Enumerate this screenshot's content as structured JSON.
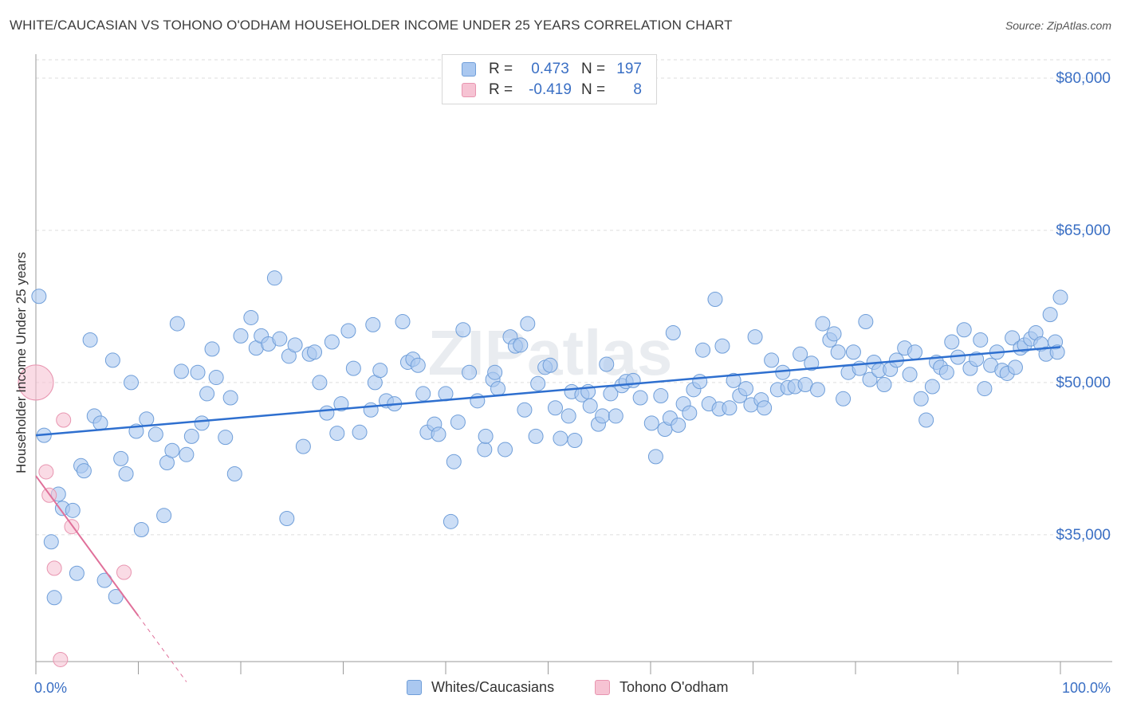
{
  "title": "WHITE/CAUCASIAN VS TOHONO O'ODHAM HOUSEHOLDER INCOME UNDER 25 YEARS CORRELATION CHART",
  "source": "Source: ZipAtlas.com",
  "watermark": "ZIPatlas",
  "legend": {
    "rows": [
      {
        "r_label": "R =",
        "r_value": "0.473",
        "n_label": "N =",
        "n_value": "197"
      },
      {
        "r_label": "R =",
        "r_value": "-0.419",
        "n_label": "N =",
        "n_value": "8"
      }
    ]
  },
  "bottom_legend": [
    "Whites/Caucasians",
    "Tohono O'odham"
  ],
  "colors": {
    "blue_fill": "#aac8f0",
    "blue_stroke": "#6f9ed9",
    "blue_line": "#2e6fcf",
    "pink_fill": "#f6c3d3",
    "pink_stroke": "#e895b0",
    "pink_line": "#e0709a",
    "tick_text": "#3a6fc4",
    "grid": "#dddddd"
  },
  "chart_data": {
    "type": "scatter",
    "title": "WHITE/CAUCASIAN VS TOHONO O'ODHAM HOUSEHOLDER INCOME UNDER 25 YEARS CORRELATION CHART",
    "xlabel": "",
    "ylabel": "Householder Income Under 25 years",
    "xlim": [
      0,
      100
    ],
    "ylim": [
      20000,
      82500
    ],
    "x_tick_labels": [
      "0.0%",
      "100.0%"
    ],
    "y_ticks": [
      35000,
      50000,
      65000,
      80000
    ],
    "y_tick_labels": [
      "$35,000",
      "$50,000",
      "$65,000",
      "$80,000"
    ],
    "grid": "horizontal dashed",
    "legend_position": "top-center",
    "series": [
      {
        "name": "Whites/Caucasians",
        "R": 0.473,
        "N": 197,
        "trend": {
          "x": [
            0,
            100
          ],
          "y": [
            44800,
            53500
          ]
        },
        "points": [
          [
            0.3,
            58500
          ],
          [
            0.8,
            44800
          ],
          [
            1.5,
            34300
          ],
          [
            1.8,
            28800
          ],
          [
            2.2,
            39000
          ],
          [
            2.6,
            37600
          ],
          [
            3.6,
            37400
          ],
          [
            4.0,
            31200
          ],
          [
            4.4,
            41800
          ],
          [
            4.7,
            41300
          ],
          [
            5.3,
            54200
          ],
          [
            5.7,
            46700
          ],
          [
            6.3,
            46000
          ],
          [
            6.7,
            30500
          ],
          [
            7.5,
            52200
          ],
          [
            7.8,
            28900
          ],
          [
            8.3,
            42500
          ],
          [
            8.8,
            41000
          ],
          [
            9.3,
            50000
          ],
          [
            9.8,
            45200
          ],
          [
            10.3,
            35500
          ],
          [
            10.8,
            46400
          ],
          [
            11.7,
            44900
          ],
          [
            12.5,
            36900
          ],
          [
            12.8,
            42100
          ],
          [
            13.3,
            43300
          ],
          [
            13.8,
            55800
          ],
          [
            14.2,
            51100
          ],
          [
            14.7,
            42900
          ],
          [
            15.2,
            44700
          ],
          [
            15.8,
            51000
          ],
          [
            16.2,
            46000
          ],
          [
            16.7,
            48900
          ],
          [
            17.2,
            53300
          ],
          [
            17.6,
            50500
          ],
          [
            18.5,
            44600
          ],
          [
            19.0,
            48500
          ],
          [
            19.4,
            41000
          ],
          [
            20.0,
            54600
          ],
          [
            21.0,
            56400
          ],
          [
            21.5,
            53400
          ],
          [
            22.0,
            54600
          ],
          [
            22.7,
            53800
          ],
          [
            23.3,
            60300
          ],
          [
            23.8,
            54300
          ],
          [
            24.5,
            36600
          ],
          [
            24.7,
            52600
          ],
          [
            25.3,
            53700
          ],
          [
            26.1,
            43700
          ],
          [
            26.7,
            52800
          ],
          [
            27.2,
            53000
          ],
          [
            27.7,
            50000
          ],
          [
            28.4,
            47000
          ],
          [
            28.9,
            54000
          ],
          [
            29.4,
            45000
          ],
          [
            29.8,
            47900
          ],
          [
            30.5,
            55100
          ],
          [
            31.0,
            51400
          ],
          [
            31.6,
            45100
          ],
          [
            32.7,
            47300
          ],
          [
            32.9,
            55700
          ],
          [
            33.1,
            50000
          ],
          [
            33.6,
            51200
          ],
          [
            34.2,
            48200
          ],
          [
            35.0,
            47900
          ],
          [
            35.8,
            56000
          ],
          [
            36.3,
            52000
          ],
          [
            36.8,
            52300
          ],
          [
            37.3,
            51700
          ],
          [
            37.8,
            48900
          ],
          [
            38.2,
            45100
          ],
          [
            38.9,
            45900
          ],
          [
            39.3,
            44900
          ],
          [
            40.0,
            48900
          ],
          [
            40.5,
            36300
          ],
          [
            40.8,
            42200
          ],
          [
            41.2,
            46100
          ],
          [
            41.7,
            55200
          ],
          [
            42.3,
            51000
          ],
          [
            43.1,
            48200
          ],
          [
            43.8,
            43400
          ],
          [
            43.9,
            44700
          ],
          [
            44.6,
            50300
          ],
          [
            44.8,
            51000
          ],
          [
            45.1,
            49400
          ],
          [
            45.8,
            43400
          ],
          [
            46.3,
            54500
          ],
          [
            46.8,
            53600
          ],
          [
            47.3,
            53700
          ],
          [
            47.7,
            47300
          ],
          [
            48.0,
            55800
          ],
          [
            48.8,
            44700
          ],
          [
            49.0,
            49900
          ],
          [
            49.7,
            51500
          ],
          [
            50.2,
            51700
          ],
          [
            50.7,
            47500
          ],
          [
            51.2,
            44500
          ],
          [
            52.0,
            46700
          ],
          [
            52.3,
            49100
          ],
          [
            52.6,
            44300
          ],
          [
            53.3,
            48800
          ],
          [
            53.9,
            49100
          ],
          [
            54.1,
            47700
          ],
          [
            54.9,
            45900
          ],
          [
            55.3,
            46700
          ],
          [
            55.7,
            51800
          ],
          [
            56.1,
            48900
          ],
          [
            56.6,
            46700
          ],
          [
            57.2,
            49700
          ],
          [
            57.6,
            50100
          ],
          [
            58.3,
            50200
          ],
          [
            59.0,
            48500
          ],
          [
            60.1,
            46000
          ],
          [
            60.5,
            42700
          ],
          [
            61.0,
            48700
          ],
          [
            61.4,
            45400
          ],
          [
            61.9,
            46500
          ],
          [
            62.2,
            54900
          ],
          [
            62.7,
            45800
          ],
          [
            63.2,
            47900
          ],
          [
            63.8,
            47000
          ],
          [
            64.2,
            49300
          ],
          [
            64.8,
            50100
          ],
          [
            65.1,
            53200
          ],
          [
            65.7,
            47900
          ],
          [
            66.3,
            58200
          ],
          [
            66.7,
            47400
          ],
          [
            67.0,
            53600
          ],
          [
            67.7,
            47500
          ],
          [
            68.1,
            50200
          ],
          [
            68.7,
            48700
          ],
          [
            69.3,
            49400
          ],
          [
            69.8,
            47800
          ],
          [
            70.2,
            54500
          ],
          [
            70.8,
            48300
          ],
          [
            71.1,
            47500
          ],
          [
            71.8,
            52200
          ],
          [
            72.4,
            49300
          ],
          [
            72.9,
            51000
          ],
          [
            73.4,
            49500
          ],
          [
            74.1,
            49600
          ],
          [
            74.6,
            52800
          ],
          [
            75.1,
            49800
          ],
          [
            75.7,
            51900
          ],
          [
            76.3,
            49300
          ],
          [
            76.8,
            55800
          ],
          [
            77.5,
            54200
          ],
          [
            77.9,
            54800
          ],
          [
            78.3,
            53000
          ],
          [
            78.8,
            48400
          ],
          [
            79.3,
            51000
          ],
          [
            79.8,
            53000
          ],
          [
            80.4,
            51400
          ],
          [
            81.0,
            56000
          ],
          [
            81.4,
            50300
          ],
          [
            81.8,
            52000
          ],
          [
            82.3,
            51200
          ],
          [
            82.8,
            49800
          ],
          [
            83.4,
            51300
          ],
          [
            84.0,
            52200
          ],
          [
            84.8,
            53400
          ],
          [
            85.3,
            50800
          ],
          [
            85.8,
            53000
          ],
          [
            86.4,
            48400
          ],
          [
            86.9,
            46300
          ],
          [
            87.5,
            49600
          ],
          [
            87.9,
            52000
          ],
          [
            88.3,
            51500
          ],
          [
            88.9,
            51000
          ],
          [
            89.4,
            54000
          ],
          [
            90.0,
            52500
          ],
          [
            90.6,
            55200
          ],
          [
            91.2,
            51400
          ],
          [
            91.8,
            52300
          ],
          [
            92.2,
            54200
          ],
          [
            92.6,
            49400
          ],
          [
            93.2,
            51700
          ],
          [
            93.8,
            53000
          ],
          [
            94.3,
            51200
          ],
          [
            94.8,
            50900
          ],
          [
            95.3,
            54400
          ],
          [
            95.6,
            51500
          ],
          [
            96.1,
            53400
          ],
          [
            96.5,
            53700
          ],
          [
            97.1,
            54300
          ],
          [
            97.6,
            54900
          ],
          [
            98.1,
            53800
          ],
          [
            98.6,
            52800
          ],
          [
            99.0,
            56700
          ],
          [
            99.5,
            54000
          ],
          [
            99.7,
            53000
          ],
          [
            100.0,
            58400
          ]
        ]
      },
      {
        "name": "Tohono O'odham",
        "R": -0.419,
        "N": 8,
        "trend": {
          "x": [
            0,
            10
          ],
          "y": [
            40800,
            27000
          ]
        },
        "trend_extrapolated": {
          "x": [
            10,
            14.7
          ],
          "y": [
            27000,
            20500
          ]
        },
        "points": [
          [
            0,
            50000
          ],
          [
            1.0,
            41200
          ],
          [
            1.3,
            38900
          ],
          [
            1.8,
            31700
          ],
          [
            2.4,
            22700
          ],
          [
            2.7,
            46300
          ],
          [
            3.5,
            35800
          ],
          [
            8.6,
            31300
          ]
        ]
      }
    ]
  },
  "axis_labels": {
    "x_left": "0.0%",
    "x_right": "100.0%",
    "y_title": "Householder Income Under 25 years"
  }
}
